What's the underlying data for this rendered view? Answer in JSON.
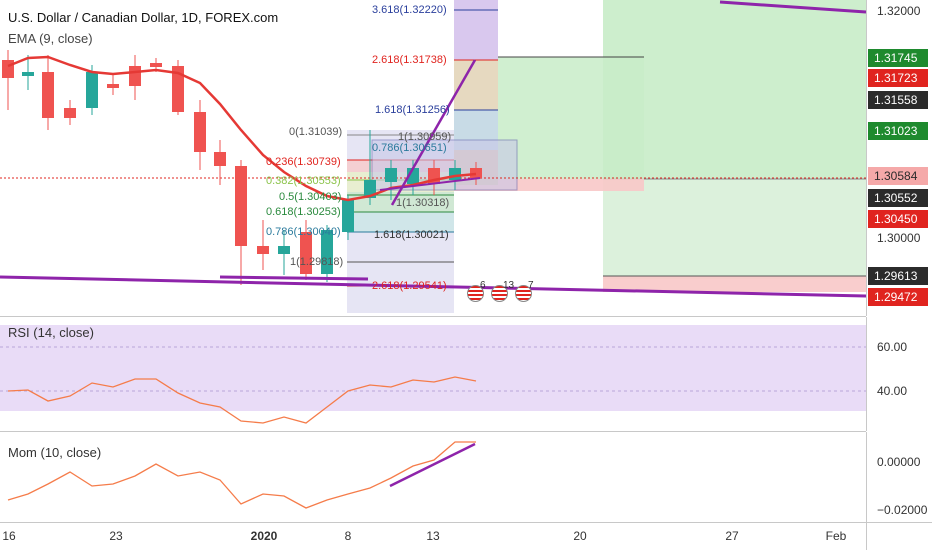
{
  "header": {
    "symbol_title": "U.S. Dollar / Canadian Dollar, 1D, FOREX.com",
    "ema_label": "EMA (9, close)"
  },
  "rsi_pane": {
    "label": "RSI (14, close)",
    "ticks": [
      "60.00",
      "40.00"
    ]
  },
  "mom_pane": {
    "label": "Mom (10, close)",
    "ticks": [
      "0.00000",
      "−0.02000"
    ]
  },
  "price_axis": {
    "ticks": [
      "1.32000",
      "1.30000"
    ],
    "tags": [
      {
        "text": "1.31745",
        "color": "#1e8a2e"
      },
      {
        "text": "1.31723",
        "color": "#e0241f"
      },
      {
        "text": "1.31558",
        "color": "#2b2b2b"
      },
      {
        "text": "1.31023",
        "color": "#1e8a2e"
      },
      {
        "text": "1.30584",
        "color": "#f5a9a9",
        "text_color": "#2b2b2b"
      },
      {
        "text": "1.30552",
        "color": "#2b2b2b"
      },
      {
        "text": "1.30450",
        "color": "#e0241f"
      },
      {
        "text": "1.29613",
        "color": "#2b2b2b"
      },
      {
        "text": "1.29472",
        "color": "#e0241f"
      }
    ]
  },
  "time_axis": {
    "labels": [
      "16",
      "23",
      "2020",
      "8",
      "13",
      "20",
      "27",
      "Feb"
    ]
  },
  "fib_labels": [
    {
      "text": "3.618(1.32220)",
      "color": "#2a3f9c"
    },
    {
      "text": "2.618(1.31738)",
      "color": "#e0241f"
    },
    {
      "text": "1.618(1.31256)",
      "color": "#2a3f9c"
    },
    {
      "text": "0(1.31039)",
      "color": "#555555"
    },
    {
      "text": "0.236(1.30739)",
      "color": "#e0241f"
    },
    {
      "text": "0.382(1.30553)",
      "color": "#8bc34a"
    },
    {
      "text": "0.5(1.30403)",
      "color": "#2b8a3e"
    },
    {
      "text": "0.618(1.30253)",
      "color": "#2b8a3e"
    },
    {
      "text": "0.786(1.30040)",
      "color": "#2a7a9c"
    },
    {
      "text": "1.618(1.30021)",
      "color": "#333333"
    },
    {
      "text": "1(1.29818)",
      "color": "#555555"
    },
    {
      "text": "2.618(1.29541)",
      "color": "#e0241f"
    },
    {
      "text": "1(1.30959)",
      "color": "#555555"
    },
    {
      "text": "0.786(1.30651)",
      "color": "#2a7a9c"
    },
    {
      "text": "1(1.30318)",
      "color": "#555555"
    }
  ],
  "events": [
    {
      "count": "6",
      "icon": "us-flag-icon"
    },
    {
      "count": "13",
      "icon": "us-flag-icon"
    },
    {
      "count": "7",
      "icon": "us-flag-icon"
    }
  ],
  "colors": {
    "up": "#26a69a",
    "down": "#ef5350",
    "ema": "#e53935",
    "trend": "#8e24aa",
    "rsi_band": "#e9dcf7",
    "osc": "#f57c4a"
  }
}
